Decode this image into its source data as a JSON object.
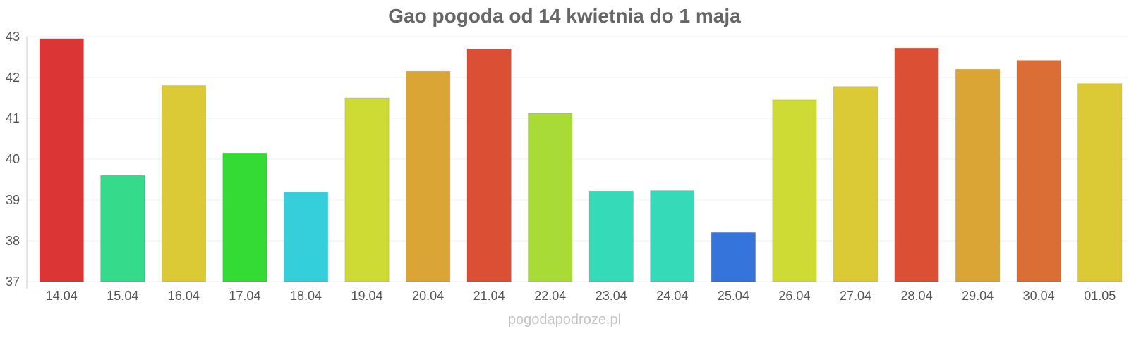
{
  "chart_data": {
    "type": "bar",
    "title": "Gao pogoda od 14 kwietnia do 1 maja",
    "xlabel": "",
    "ylabel": "",
    "ylim": [
      37,
      43
    ],
    "yticks": [
      "37",
      "38",
      "39",
      "40",
      "41",
      "42",
      "43"
    ],
    "grid": true,
    "legend": "none",
    "categories": [
      "14.04",
      "15.04",
      "16.04",
      "17.04",
      "18.04",
      "19.04",
      "20.04",
      "21.04",
      "22.04",
      "23.04",
      "24.04",
      "25.04",
      "26.04",
      "27.04",
      "28.04",
      "29.04",
      "30.04",
      "01.05"
    ],
    "values": [
      42.95,
      39.6,
      41.8,
      40.15,
      39.2,
      41.5,
      42.15,
      42.7,
      41.12,
      39.22,
      39.23,
      38.2,
      41.45,
      41.78,
      42.72,
      42.2,
      42.42,
      41.85
    ],
    "colors": [
      "#db3535",
      "#35db8a",
      "#dbc935",
      "#35db35",
      "#35cfdb",
      "#cfdb35",
      "#dba535",
      "#db5035",
      "#a8db35",
      "#35dbb8",
      "#35dbb8",
      "#3575db",
      "#cedb35",
      "#dbc935",
      "#db5035",
      "#dba535",
      "#db6e35",
      "#dbc935"
    ]
  },
  "watermark": "pogodapodroze.pl"
}
